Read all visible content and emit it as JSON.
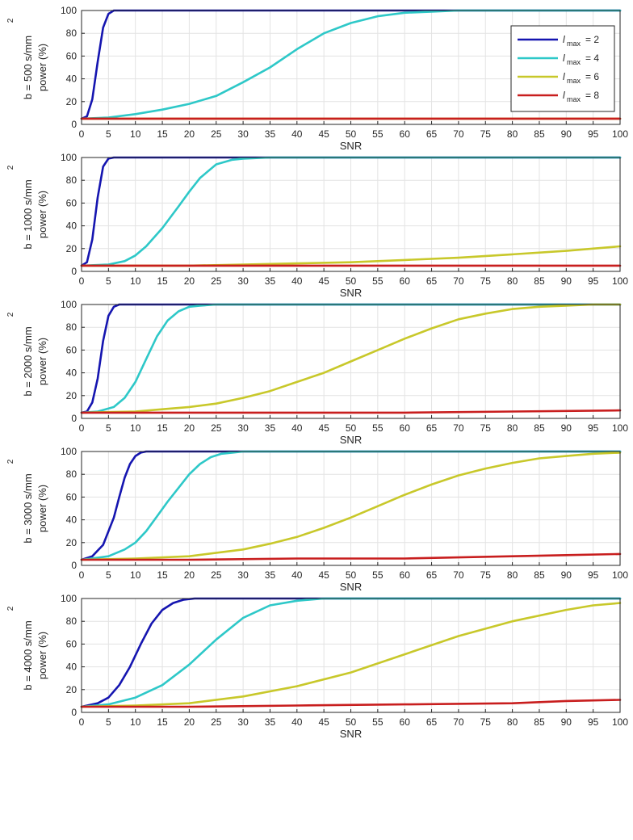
{
  "chart_data": [
    {
      "type": "line",
      "panel": "b500",
      "ylabel_main": "b = 500 s/mm",
      "ylabel_sup": "2",
      "ylabel_power": "power (%)",
      "xlabel": "SNR",
      "xlim": [
        0,
        100
      ],
      "ylim": [
        0,
        100
      ],
      "xticks": [
        0,
        5,
        10,
        15,
        20,
        25,
        30,
        35,
        40,
        45,
        50,
        55,
        60,
        65,
        70,
        75,
        80,
        85,
        90,
        95,
        100
      ],
      "yticks": [
        0,
        20,
        40,
        60,
        80,
        100
      ],
      "grid": true,
      "legend": {
        "placement": "top-right",
        "entries": [
          {
            "symbol": "l",
            "sub": "max",
            "value": "= 2"
          },
          {
            "symbol": "l",
            "sub": "max",
            "value": "= 4"
          },
          {
            "symbol": "l",
            "sub": "max",
            "value": "= 6"
          },
          {
            "symbol": "l",
            "sub": "max",
            "value": "= 8"
          }
        ]
      },
      "series": [
        {
          "color": "#1515b0",
          "x": [
            0,
            1,
            2,
            3,
            4,
            5,
            6,
            8,
            100
          ],
          "y": [
            5,
            7,
            22,
            55,
            85,
            97,
            100,
            100,
            100
          ]
        },
        {
          "color": "#2ec8c8",
          "x": [
            0,
            5,
            10,
            15,
            20,
            25,
            30,
            35,
            40,
            45,
            50,
            55,
            60,
            65,
            70,
            100
          ],
          "y": [
            5,
            6,
            9,
            13,
            18,
            25,
            37,
            50,
            66,
            80,
            89,
            95,
            98,
            99,
            100,
            100
          ]
        },
        {
          "color": "#c8c82a",
          "x": [
            0,
            100
          ],
          "y": [
            5,
            5
          ]
        },
        {
          "color": "#c81e1e",
          "x": [
            0,
            10,
            20,
            30,
            40,
            50,
            60,
            70,
            80,
            90,
            100
          ],
          "y": [
            5,
            5,
            5,
            5,
            5,
            5,
            5,
            5,
            5,
            5,
            5
          ]
        }
      ]
    },
    {
      "type": "line",
      "panel": "b1000",
      "ylabel_main": "b = 1000 s/mm",
      "ylabel_sup": "2",
      "ylabel_power": "power (%)",
      "xlabel": "SNR",
      "xlim": [
        0,
        100
      ],
      "ylim": [
        0,
        100
      ],
      "xticks": [
        0,
        5,
        10,
        15,
        20,
        25,
        30,
        35,
        40,
        45,
        50,
        55,
        60,
        65,
        70,
        75,
        80,
        85,
        90,
        95,
        100
      ],
      "yticks": [
        0,
        20,
        40,
        60,
        80,
        100
      ],
      "grid": true,
      "series": [
        {
          "color": "#1515b0",
          "x": [
            0,
            1,
            2,
            3,
            4,
            5,
            6,
            8,
            100
          ],
          "y": [
            5,
            8,
            28,
            65,
            92,
            99,
            100,
            100,
            100
          ]
        },
        {
          "color": "#2ec8c8",
          "x": [
            0,
            5,
            8,
            10,
            12,
            15,
            18,
            20,
            22,
            25,
            28,
            30,
            35,
            100
          ],
          "y": [
            5,
            6,
            9,
            14,
            22,
            38,
            57,
            70,
            82,
            94,
            98,
            99,
            100,
            100
          ]
        },
        {
          "color": "#c8c82a",
          "x": [
            0,
            20,
            30,
            40,
            50,
            60,
            70,
            80,
            90,
            100
          ],
          "y": [
            5,
            5,
            6,
            7,
            8,
            10,
            12,
            15,
            18,
            22
          ]
        },
        {
          "color": "#c81e1e",
          "x": [
            0,
            20,
            40,
            60,
            80,
            100
          ],
          "y": [
            5,
            5,
            5,
            5,
            5,
            5
          ]
        }
      ]
    },
    {
      "type": "line",
      "panel": "b2000",
      "ylabel_main": "b = 2000 s/mm",
      "ylabel_sup": "2",
      "ylabel_power": "power (%)",
      "xlabel": "SNR",
      "xlim": [
        0,
        100
      ],
      "ylim": [
        0,
        100
      ],
      "xticks": [
        0,
        5,
        10,
        15,
        20,
        25,
        30,
        35,
        40,
        45,
        50,
        55,
        60,
        65,
        70,
        75,
        80,
        85,
        90,
        95,
        100
      ],
      "yticks": [
        0,
        20,
        40,
        60,
        80,
        100
      ],
      "grid": true,
      "series": [
        {
          "color": "#1515b0",
          "x": [
            0,
            1,
            2,
            3,
            4,
            5,
            6,
            7,
            8,
            100
          ],
          "y": [
            5,
            6,
            14,
            35,
            68,
            90,
            98,
            100,
            100,
            100
          ]
        },
        {
          "color": "#2ec8c8",
          "x": [
            0,
            3,
            6,
            8,
            10,
            12,
            14,
            16,
            18,
            20,
            22,
            25,
            100
          ],
          "y": [
            5,
            6,
            10,
            18,
            32,
            52,
            72,
            86,
            94,
            98,
            99,
            100,
            100
          ]
        },
        {
          "color": "#c8c82a",
          "x": [
            0,
            10,
            15,
            20,
            25,
            30,
            35,
            40,
            45,
            50,
            55,
            60,
            65,
            70,
            75,
            80,
            85,
            90,
            95,
            100
          ],
          "y": [
            5,
            6,
            8,
            10,
            13,
            18,
            24,
            32,
            40,
            50,
            60,
            70,
            79,
            87,
            92,
            96,
            98,
            99,
            100,
            100
          ]
        },
        {
          "color": "#c81e1e",
          "x": [
            0,
            20,
            40,
            60,
            80,
            100
          ],
          "y": [
            5,
            5,
            5,
            5,
            6,
            7
          ]
        }
      ]
    },
    {
      "type": "line",
      "panel": "b3000",
      "ylabel_main": "b = 3000 s/mm",
      "ylabel_sup": "2",
      "ylabel_power": "power (%)",
      "xlabel": "SNR",
      "xlim": [
        0,
        100
      ],
      "ylim": [
        0,
        100
      ],
      "xticks": [
        0,
        5,
        10,
        15,
        20,
        25,
        30,
        35,
        40,
        45,
        50,
        55,
        60,
        65,
        70,
        75,
        80,
        85,
        90,
        95,
        100
      ],
      "yticks": [
        0,
        20,
        40,
        60,
        80,
        100
      ],
      "grid": true,
      "series": [
        {
          "color": "#1515b0",
          "x": [
            0,
            2,
            4,
            6,
            7,
            8,
            9,
            10,
            11,
            12,
            13,
            100
          ],
          "y": [
            5,
            8,
            18,
            42,
            60,
            77,
            89,
            96,
            99,
            100,
            100,
            100
          ]
        },
        {
          "color": "#2ec8c8",
          "x": [
            0,
            5,
            8,
            10,
            12,
            14,
            16,
            18,
            20,
            22,
            24,
            26,
            28,
            30,
            100
          ],
          "y": [
            5,
            8,
            14,
            20,
            30,
            43,
            56,
            68,
            80,
            89,
            95,
            98,
            99,
            100,
            100
          ]
        },
        {
          "color": "#c8c82a",
          "x": [
            0,
            10,
            20,
            30,
            35,
            40,
            45,
            50,
            55,
            60,
            65,
            70,
            75,
            80,
            85,
            90,
            95,
            100
          ],
          "y": [
            5,
            6,
            8,
            14,
            19,
            25,
            33,
            42,
            52,
            62,
            71,
            79,
            85,
            90,
            94,
            96,
            98,
            99
          ]
        },
        {
          "color": "#c81e1e",
          "x": [
            0,
            20,
            40,
            60,
            80,
            90,
            100
          ],
          "y": [
            5,
            5,
            6,
            6,
            8,
            9,
            10
          ]
        }
      ]
    },
    {
      "type": "line",
      "panel": "b4000",
      "ylabel_main": "b = 4000 s/mm",
      "ylabel_sup": "2",
      "ylabel_power": "power (%)",
      "xlabel": "SNR",
      "xlim": [
        0,
        100
      ],
      "ylim": [
        0,
        100
      ],
      "xticks": [
        0,
        5,
        10,
        15,
        20,
        25,
        30,
        35,
        40,
        45,
        50,
        55,
        60,
        65,
        70,
        75,
        80,
        85,
        90,
        95,
        100
      ],
      "yticks": [
        0,
        20,
        40,
        60,
        80,
        100
      ],
      "grid": true,
      "series": [
        {
          "color": "#1515b0",
          "x": [
            0,
            3,
            5,
            7,
            9,
            11,
            13,
            15,
            17,
            19,
            21,
            23,
            100
          ],
          "y": [
            5,
            8,
            13,
            24,
            40,
            60,
            78,
            90,
            96,
            99,
            100,
            100,
            100
          ]
        },
        {
          "color": "#2ec8c8",
          "x": [
            0,
            5,
            10,
            15,
            20,
            25,
            30,
            35,
            40,
            45,
            100
          ],
          "y": [
            5,
            7,
            13,
            24,
            42,
            64,
            83,
            94,
            98,
            100,
            100
          ]
        },
        {
          "color": "#c8c82a",
          "x": [
            0,
            10,
            20,
            30,
            40,
            50,
            60,
            70,
            80,
            90,
            95,
            100
          ],
          "y": [
            5,
            6,
            8,
            14,
            23,
            35,
            51,
            67,
            80,
            90,
            94,
            96
          ]
        },
        {
          "color": "#c81e1e",
          "x": [
            0,
            20,
            40,
            60,
            80,
            90,
            100
          ],
          "y": [
            5,
            5,
            6,
            7,
            8,
            10,
            11
          ]
        }
      ]
    }
  ]
}
